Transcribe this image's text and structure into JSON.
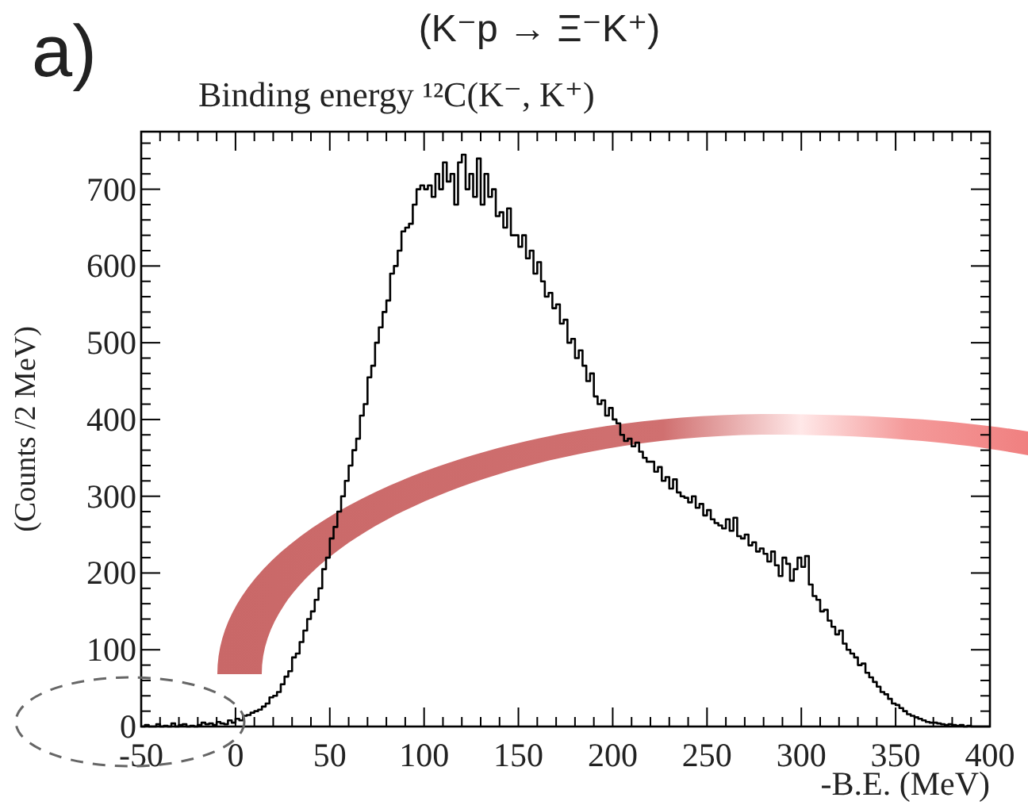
{
  "chart_data": {
    "type": "histogram",
    "title": "Binding energy ¹²C(K⁻, K⁺)",
    "xlabel": "-B.E. (MeV)",
    "ylabel": "(Counts /2 MeV)",
    "annotations": [
      "a)",
      "(K⁻p → Ξ⁻K⁺)"
    ],
    "color": "#000000",
    "xlim": [
      -50,
      400
    ],
    "ylim": [
      0,
      775
    ],
    "xticks": [
      -50,
      {
        "value": -40,
        "label": null
      },
      {
        "value": -30,
        "label": null
      },
      {
        "value": -20,
        "label": null
      },
      {
        "value": -10,
        "label": null
      },
      0,
      {
        "value": 10,
        "label": null
      },
      {
        "value": 20,
        "label": null
      },
      {
        "value": 30,
        "label": null
      },
      {
        "value": 40,
        "label": null
      },
      50,
      {
        "value": 60,
        "label": null
      },
      {
        "value": 70,
        "label": null
      },
      {
        "value": 80,
        "label": null
      },
      {
        "value": 90,
        "label": null
      },
      100,
      {
        "value": 110,
        "label": null
      },
      {
        "value": 120,
        "label": null
      },
      {
        "value": 130,
        "label": null
      },
      {
        "value": 140,
        "label": null
      },
      150,
      {
        "value": 160,
        "label": null
      },
      {
        "value": 170,
        "label": null
      },
      {
        "value": 180,
        "label": null
      },
      {
        "value": 190,
        "label": null
      },
      200,
      {
        "value": 210,
        "label": null
      },
      {
        "value": 220,
        "label": null
      },
      {
        "value": 230,
        "label": null
      },
      {
        "value": 240,
        "label": null
      },
      250,
      {
        "value": 260,
        "label": null
      },
      {
        "value": 270,
        "label": null
      },
      {
        "value": 280,
        "label": null
      },
      {
        "value": 290,
        "label": null
      },
      300,
      {
        "value": 310,
        "label": null
      },
      {
        "value": 320,
        "label": null
      },
      {
        "value": 330,
        "label": null
      },
      {
        "value": 340,
        "label": null
      },
      350,
      {
        "value": 360,
        "label": null
      },
      {
        "value": 370,
        "label": null
      },
      {
        "value": 380,
        "label": null
      },
      {
        "value": 390,
        "label": null
      },
      400
    ],
    "yticks": [
      0,
      {
        "value": 20,
        "label": null
      },
      {
        "value": 40,
        "label": null
      },
      {
        "value": 60,
        "label": null
      },
      {
        "value": 80,
        "label": null
      },
      100,
      {
        "value": 120,
        "label": null
      },
      {
        "value": 140,
        "label": null
      },
      {
        "value": 160,
        "label": null
      },
      {
        "value": 180,
        "label": null
      },
      200,
      {
        "value": 220,
        "label": null
      },
      {
        "value": 240,
        "label": null
      },
      {
        "value": 260,
        "label": null
      },
      {
        "value": 280,
        "label": null
      },
      300,
      {
        "value": 320,
        "label": null
      },
      {
        "value": 340,
        "label": null
      },
      {
        "value": 360,
        "label": null
      },
      {
        "value": 380,
        "label": null
      },
      400,
      {
        "value": 420,
        "label": null
      },
      {
        "value": 440,
        "label": null
      },
      {
        "value": 460,
        "label": null
      },
      {
        "value": 480,
        "label": null
      },
      500,
      {
        "value": 520,
        "label": null
      },
      {
        "value": 540,
        "label": null
      },
      {
        "value": 560,
        "label": null
      },
      {
        "value": 580,
        "label": null
      },
      600,
      {
        "value": 620,
        "label": null
      },
      {
        "value": 640,
        "label": null
      },
      {
        "value": 660,
        "label": null
      },
      {
        "value": 680,
        "label": null
      },
      700,
      {
        "value": 720,
        "label": null
      },
      {
        "value": 740,
        "label": null
      },
      {
        "value": 760,
        "label": null
      }
    ],
    "bins": [
      -50,
      -48,
      -46,
      -44,
      -42,
      -40,
      -38,
      -36,
      -34,
      -32,
      -30,
      -28,
      -26,
      -24,
      -22,
      -20,
      -18,
      -16,
      -14,
      -12,
      -10,
      -8,
      -6,
      -4,
      -2,
      0,
      2,
      4,
      6,
      8,
      10,
      12,
      14,
      16,
      18,
      20,
      22,
      24,
      26,
      28,
      30,
      32,
      34,
      36,
      38,
      40,
      42,
      44,
      46,
      48,
      50,
      52,
      54,
      56,
      58,
      60,
      62,
      64,
      66,
      68,
      70,
      72,
      74,
      76,
      78,
      80,
      82,
      84,
      86,
      88,
      90,
      92,
      94,
      96,
      98,
      100,
      102,
      104,
      106,
      108,
      110,
      112,
      114,
      116,
      118,
      120,
      122,
      124,
      126,
      128,
      130,
      132,
      134,
      136,
      138,
      140,
      142,
      144,
      146,
      148,
      150,
      152,
      154,
      156,
      158,
      160,
      162,
      164,
      166,
      168,
      170,
      172,
      174,
      176,
      178,
      180,
      182,
      184,
      186,
      188,
      190,
      192,
      194,
      196,
      198,
      200,
      202,
      204,
      206,
      208,
      210,
      212,
      214,
      216,
      218,
      220,
      222,
      224,
      226,
      228,
      230,
      232,
      234,
      236,
      238,
      240,
      242,
      244,
      246,
      248,
      250,
      252,
      254,
      256,
      258,
      260,
      262,
      264,
      266,
      268,
      270,
      272,
      274,
      276,
      278,
      280,
      282,
      284,
      286,
      288,
      290,
      292,
      294,
      296,
      298,
      300,
      302,
      304,
      306,
      308,
      310,
      312,
      314,
      316,
      318,
      320,
      322,
      324,
      326,
      328,
      330,
      332,
      334,
      336,
      338,
      340,
      342,
      344,
      346,
      348,
      350,
      352,
      354,
      356,
      358,
      360,
      362,
      364,
      366,
      368,
      370,
      372,
      374,
      376,
      378,
      380,
      382,
      384,
      386,
      388,
      390,
      392,
      394,
      396,
      398,
      400
    ],
    "values": [
      0,
      2,
      0,
      0,
      3,
      0,
      1,
      0,
      4,
      0,
      2,
      3,
      0,
      1,
      0,
      2,
      5,
      3,
      4,
      2,
      6,
      4,
      3,
      8,
      5,
      10,
      8,
      14,
      15,
      18,
      20,
      22,
      26,
      30,
      38,
      40,
      45,
      55,
      65,
      72,
      90,
      95,
      110,
      125,
      140,
      150,
      165,
      180,
      205,
      220,
      245,
      260,
      280,
      300,
      320,
      340,
      360,
      375,
      405,
      420,
      455,
      470,
      500,
      520,
      540,
      555,
      590,
      600,
      620,
      645,
      650,
      655,
      680,
      700,
      705,
      700,
      705,
      690,
      720,
      700,
      735,
      710,
      720,
      680,
      735,
      745,
      700,
      720,
      690,
      740,
      680,
      720,
      690,
      700,
      665,
      670,
      650,
      675,
      640,
      640,
      625,
      640,
      610,
      620,
      590,
      605,
      580,
      560,
      565,
      545,
      550,
      525,
      530,
      500,
      505,
      480,
      490,
      470,
      450,
      460,
      430,
      420,
      425,
      405,
      415,
      400,
      395,
      380,
      372,
      375,
      365,
      370,
      358,
      350,
      345,
      345,
      332,
      338,
      320,
      325,
      310,
      322,
      305,
      300,
      298,
      292,
      300,
      285,
      290,
      275,
      282,
      270,
      265,
      262,
      258,
      270,
      255,
      272,
      248,
      245,
      250,
      236,
      240,
      228,
      232,
      225,
      215,
      228,
      210,
      196,
      220,
      212,
      190,
      205,
      220,
      208,
      222,
      185,
      170,
      165,
      150,
      152,
      138,
      130,
      120,
      125,
      108,
      100,
      95,
      90,
      80,
      82,
      70,
      64,
      58,
      52,
      45,
      42,
      36,
      30,
      28,
      24,
      20,
      16,
      14,
      12,
      10,
      8,
      6,
      5,
      5,
      4,
      3,
      2,
      3,
      2,
      1,
      2,
      0,
      1,
      0,
      0,
      0,
      0,
      0
    ]
  }
}
